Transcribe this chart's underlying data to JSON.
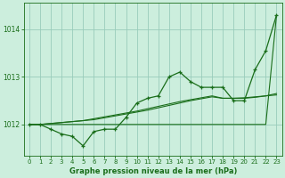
{
  "title": "Graphe pression niveau de la mer (hPa)",
  "bg_color": "#cceedd",
  "grid_color": "#99ccbb",
  "line_color": "#1a6e1a",
  "x_values": [
    0,
    1,
    2,
    3,
    4,
    5,
    6,
    7,
    8,
    9,
    10,
    11,
    12,
    13,
    14,
    15,
    16,
    17,
    18,
    19,
    20,
    21,
    22,
    23
  ],
  "y_main": [
    1012.0,
    1012.0,
    1011.9,
    1011.8,
    1011.75,
    1011.55,
    1011.85,
    1011.9,
    1011.9,
    1012.15,
    1012.45,
    1012.55,
    1012.6,
    1013.0,
    1013.1,
    1012.9,
    1012.78,
    1012.78,
    1012.78,
    1012.5,
    1012.5,
    1013.15,
    1013.55,
    1014.3
  ],
  "y_line1": [
    1012.0,
    1012.0,
    1012.0,
    1012.0,
    1012.0,
    1012.0,
    1012.0,
    1012.0,
    1012.0,
    1012.0,
    1012.0,
    1012.0,
    1012.0,
    1012.0,
    1012.0,
    1012.0,
    1012.0,
    1012.0,
    1012.0,
    1012.0,
    1012.0,
    1012.0,
    1012.0,
    1014.3
  ],
  "y_line2": [
    1012.0,
    1012.0,
    1012.02,
    1012.04,
    1012.06,
    1012.08,
    1012.12,
    1012.16,
    1012.2,
    1012.24,
    1012.28,
    1012.33,
    1012.38,
    1012.43,
    1012.48,
    1012.52,
    1012.56,
    1012.6,
    1012.55,
    1012.55,
    1012.56,
    1012.58,
    1012.6,
    1012.65
  ],
  "y_line3": [
    1012.0,
    1012.0,
    1012.02,
    1012.04,
    1012.06,
    1012.08,
    1012.1,
    1012.14,
    1012.18,
    1012.22,
    1012.26,
    1012.3,
    1012.35,
    1012.4,
    1012.45,
    1012.5,
    1012.54,
    1012.58,
    1012.55,
    1012.55,
    1012.55,
    1012.57,
    1012.6,
    1012.62
  ],
  "xlim": [
    -0.5,
    23.5
  ],
  "ylim": [
    1011.35,
    1014.55
  ],
  "yticks": [
    1012,
    1013,
    1014
  ],
  "xticks": [
    0,
    1,
    2,
    3,
    4,
    5,
    6,
    7,
    8,
    9,
    10,
    11,
    12,
    13,
    14,
    15,
    16,
    17,
    18,
    19,
    20,
    21,
    22,
    23
  ]
}
